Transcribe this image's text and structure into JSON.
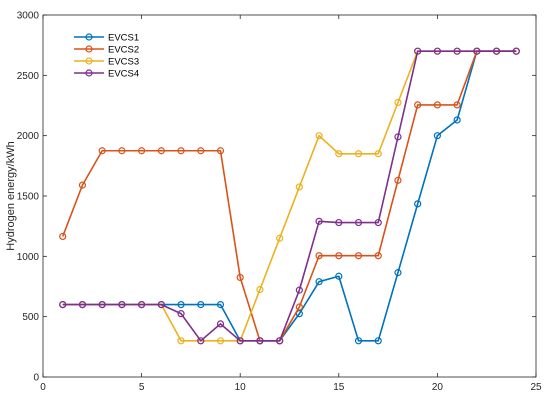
{
  "chart_data": {
    "type": "line",
    "title": "",
    "xlabel": "",
    "ylabel": "Hydrogen energy/kWh",
    "xlim": [
      0,
      25
    ],
    "ylim": [
      0,
      3000
    ],
    "xticks": [
      0,
      5,
      10,
      15,
      20,
      25
    ],
    "yticks": [
      0,
      500,
      1000,
      1500,
      2000,
      2500,
      3000
    ],
    "grid": false,
    "legend_position": "top-left",
    "series": [
      {
        "name": "EVCS1",
        "color": "#0072BD",
        "x": [
          1,
          2,
          3,
          4,
          5,
          6,
          7,
          8,
          9,
          10,
          11,
          12,
          13,
          14,
          15,
          16,
          17,
          18,
          19,
          20,
          21,
          22,
          23,
          24
        ],
        "values": [
          600,
          600,
          600,
          600,
          600,
          600,
          600,
          600,
          600,
          300,
          300,
          300,
          525,
          790,
          835,
          300,
          300,
          865,
          1435,
          2000,
          2130,
          2700,
          2700,
          2700
        ]
      },
      {
        "name": "EVCS2",
        "color": "#D95319",
        "x": [
          1,
          2,
          3,
          4,
          5,
          6,
          7,
          8,
          9,
          10,
          11,
          12,
          13,
          14,
          15,
          16,
          17,
          18,
          19,
          20,
          21,
          22,
          23,
          24
        ],
        "values": [
          1165,
          1590,
          1875,
          1875,
          1875,
          1875,
          1875,
          1875,
          1875,
          825,
          300,
          300,
          580,
          1005,
          1005,
          1005,
          1005,
          1630,
          2255,
          2255,
          2255,
          2700,
          2700,
          2700
        ]
      },
      {
        "name": "EVCS3",
        "color": "#EDB120",
        "x": [
          1,
          2,
          3,
          4,
          5,
          6,
          7,
          8,
          9,
          10,
          11,
          12,
          13,
          14,
          15,
          16,
          17,
          18,
          19,
          20,
          21,
          22,
          23,
          24
        ],
        "values": [
          600,
          600,
          600,
          600,
          600,
          600,
          300,
          300,
          300,
          300,
          725,
          1150,
          1575,
          2000,
          1850,
          1850,
          1850,
          2275,
          2700,
          2700,
          2700,
          2700,
          2700,
          2700
        ]
      },
      {
        "name": "EVCS4",
        "color": "#7E2F8E",
        "x": [
          1,
          2,
          3,
          4,
          5,
          6,
          7,
          8,
          9,
          10,
          11,
          12,
          13,
          14,
          15,
          16,
          17,
          18,
          19,
          20,
          21,
          22,
          23,
          24
        ],
        "values": [
          600,
          600,
          600,
          600,
          600,
          600,
          525,
          300,
          440,
          300,
          300,
          300,
          720,
          1290,
          1280,
          1280,
          1280,
          1990,
          2700,
          2700,
          2700,
          2700,
          2700,
          2700
        ]
      }
    ]
  }
}
